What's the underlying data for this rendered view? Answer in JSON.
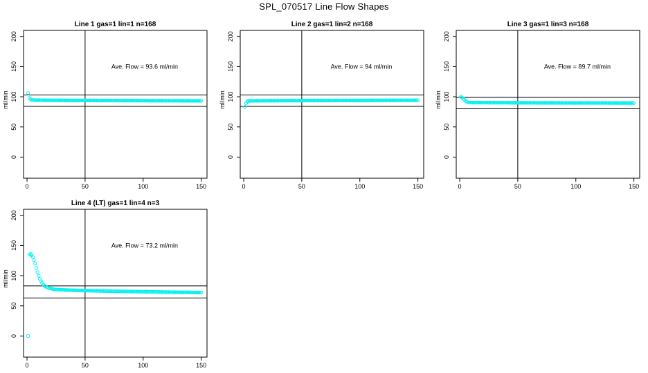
{
  "page_title": "SPL_070517  Line Flow Shapes",
  "colors": {
    "points": "#00f0f0",
    "lines": "#000000",
    "background": "#ffffff"
  },
  "chart_data": [
    {
      "type": "scatter",
      "title": "Line 1 gas=1 lin=1 n=168",
      "xlabel": "",
      "ylabel": "ml/min",
      "xlim": [
        -3,
        155
      ],
      "ylim": [
        -35,
        210
      ],
      "xticks": [
        0,
        50,
        100,
        150
      ],
      "yticks": [
        0,
        50,
        100,
        150,
        200
      ],
      "annotation": "Ave. Flow =  93.6  ml/min",
      "hlines": [
        103,
        84
      ],
      "vline": 50,
      "points": {
        "start_values": [
          106,
          98,
          96,
          95
        ],
        "plateau_start": 94.5,
        "plateau_end": 93.3,
        "n": 150
      }
    },
    {
      "type": "scatter",
      "title": "Line 2 gas=1 lin=2 n=168",
      "xlabel": "",
      "ylabel": "ml/min",
      "xlim": [
        -3,
        155
      ],
      "ylim": [
        -35,
        210
      ],
      "xticks": [
        0,
        50,
        100,
        150
      ],
      "yticks": [
        0,
        50,
        100,
        150,
        200
      ],
      "annotation": "Ave. Flow =  94  ml/min",
      "hlines": [
        103,
        84
      ],
      "vline": 50,
      "points": {
        "start_values": [
          83,
          89,
          92
        ],
        "plateau_start": 93.2,
        "plateau_end": 94.2,
        "n": 150
      }
    },
    {
      "type": "scatter",
      "title": "Line 3 gas=1 lin=3 n=168",
      "xlabel": "",
      "ylabel": "ml/min",
      "xlim": [
        -3,
        155
      ],
      "ylim": [
        -35,
        210
      ],
      "xticks": [
        0,
        50,
        100,
        150
      ],
      "yticks": [
        0,
        50,
        100,
        150,
        200
      ],
      "annotation": "Ave. Flow =  89.7  ml/min",
      "hlines": [
        99,
        80
      ],
      "vline": 50,
      "points": {
        "start_values": [
          100,
          99,
          97,
          95,
          93,
          92,
          91
        ],
        "plateau_start": 90.5,
        "plateau_end": 89.6,
        "n": 150
      }
    },
    {
      "type": "scatter",
      "title": "Line 4 (LT) gas=1 lin=4 n=3",
      "xlabel": "",
      "ylabel": "ml/min",
      "xlim": [
        -3,
        155
      ],
      "ylim": [
        -35,
        210
      ],
      "xticks": [
        0,
        50,
        100,
        150
      ],
      "yticks": [
        0,
        50,
        100,
        150,
        200
      ],
      "annotation": "Ave. Flow =  73.2  ml/min",
      "hlines": [
        83,
        63
      ],
      "vline": 50,
      "points": {
        "start_values": [
          0,
          135,
          136,
          134,
          131,
          126,
          120,
          113,
          106,
          100,
          95,
          91,
          88,
          85,
          83,
          82,
          81,
          80,
          79.5,
          79,
          78.5,
          78
        ],
        "plateau_start": 77.5,
        "plateau_end": 72,
        "n": 150
      }
    }
  ]
}
